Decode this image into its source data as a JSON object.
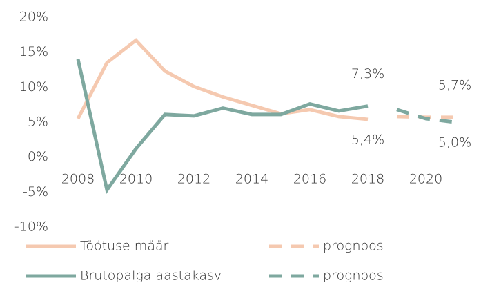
{
  "chart_data": {
    "type": "line",
    "x": [
      2008,
      2009,
      2010,
      2011,
      2012,
      2013,
      2014,
      2015,
      2016,
      2017,
      2018,
      2019,
      2020,
      2021
    ],
    "xlim": [
      2008,
      2021
    ],
    "xticks": [
      2008,
      2010,
      2012,
      2014,
      2016,
      2018,
      2020
    ],
    "ylim": [
      -10,
      20
    ],
    "yticks": [
      {
        "value": -10,
        "label": "-10%"
      },
      {
        "value": -5,
        "label": "-5%"
      },
      {
        "value": 0,
        "label": "0%"
      },
      {
        "value": 5,
        "label": "5%"
      },
      {
        "value": 10,
        "label": "10%"
      },
      {
        "value": 15,
        "label": "15%"
      },
      {
        "value": 20,
        "label": "20%"
      }
    ],
    "grid": false,
    "legend": "bottom",
    "series": [
      {
        "name": "Töötuse määr",
        "color": "#f5c9b0",
        "dashed": false,
        "values": [
          5.5,
          13.5,
          16.7,
          12.3,
          10.1,
          8.6,
          7.4,
          6.2,
          6.8,
          5.8,
          5.4,
          null,
          null,
          null
        ],
        "value_labels": [
          null,
          null,
          null,
          null,
          null,
          null,
          null,
          null,
          null,
          null,
          "5,4%",
          null,
          null,
          null
        ]
      },
      {
        "name": "prognoos",
        "color": "#f5c9b0",
        "dashed": true,
        "values": [
          null,
          null,
          null,
          null,
          null,
          null,
          null,
          null,
          null,
          null,
          null,
          5.8,
          5.7,
          5.7
        ],
        "value_labels": [
          null,
          null,
          null,
          null,
          null,
          null,
          null,
          null,
          null,
          null,
          null,
          null,
          null,
          "5,7%"
        ]
      },
      {
        "name": "Brutopalga aastakasv",
        "color": "#7ea89f",
        "dashed": false,
        "values": [
          14.0,
          -4.7,
          1.2,
          6.1,
          5.9,
          7.0,
          6.1,
          6.1,
          7.6,
          6.6,
          7.3,
          null,
          null,
          null
        ],
        "value_labels": [
          null,
          null,
          null,
          null,
          null,
          null,
          null,
          null,
          null,
          null,
          "7,3%",
          null,
          null,
          null
        ]
      },
      {
        "name": "prognoos",
        "color": "#7ea89f",
        "dashed": true,
        "values": [
          null,
          null,
          null,
          null,
          null,
          null,
          null,
          null,
          null,
          null,
          null,
          6.8,
          5.5,
          5.0
        ],
        "value_labels": [
          null,
          null,
          null,
          null,
          null,
          null,
          null,
          null,
          null,
          null,
          null,
          null,
          null,
          "5,0%"
        ]
      }
    ]
  }
}
